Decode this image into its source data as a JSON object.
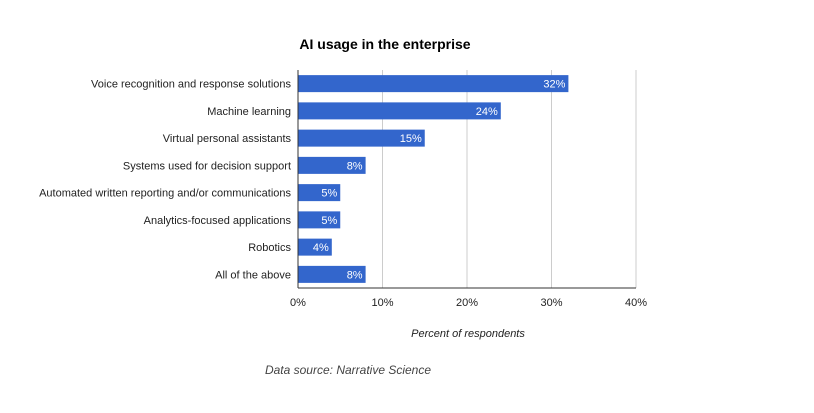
{
  "chart_data": {
    "type": "bar",
    "orientation": "horizontal",
    "title": "AI usage in the enterprise",
    "categories": [
      "Voice recognition and response solutions",
      "Machine learning",
      "Virtual personal assistants",
      "Systems used for decision support",
      "Automated written reporting and/or communications",
      "Analytics-focused applications",
      "Robotics",
      "All of the above"
    ],
    "values": [
      32,
      24,
      15,
      8,
      5,
      5,
      4,
      8
    ],
    "data_labels": [
      "32%",
      "24%",
      "15%",
      "8%",
      "5%",
      "5%",
      "4%",
      "8%"
    ],
    "xlabel": "Percent of respondents",
    "ylabel": "",
    "xlim": [
      0,
      40
    ],
    "x_ticks": [
      0,
      10,
      20,
      30,
      40
    ],
    "x_tick_labels": [
      "0%",
      "10%",
      "20%",
      "30%",
      "40%"
    ],
    "grid": true,
    "legend": "none",
    "bar_color": "#3366cc",
    "gridline_color": "#cccccc",
    "source": "Data source: Narrative Science"
  }
}
